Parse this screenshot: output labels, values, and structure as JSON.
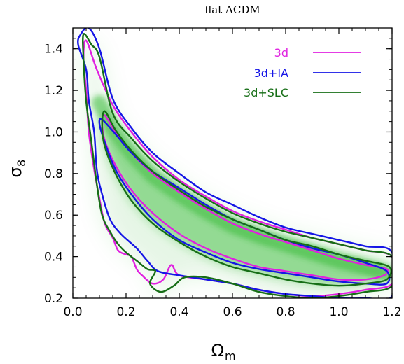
{
  "chart_data": {
    "type": "contour",
    "title": "flat ΛCDM",
    "xlabel": {
      "symbol": "Ω",
      "subscript": "m"
    },
    "ylabel": {
      "symbol": "σ",
      "subscript": "8"
    },
    "xlim": [
      0.0,
      1.2
    ],
    "ylim": [
      0.2,
      1.5
    ],
    "xticks": [
      {
        "value": 0.0,
        "label": "0.0"
      },
      {
        "value": 0.2,
        "label": "0.2"
      },
      {
        "value": 0.4,
        "label": "0.4"
      },
      {
        "value": 0.6,
        "label": "0.6"
      },
      {
        "value": 0.8,
        "label": "0.8"
      },
      {
        "value": 1.0,
        "label": "1.0"
      },
      {
        "value": 1.2,
        "label": "1.2"
      }
    ],
    "yticks": [
      {
        "value": 0.2,
        "label": "0.2"
      },
      {
        "value": 0.4,
        "label": "0.4"
      },
      {
        "value": 0.6,
        "label": "0.6"
      },
      {
        "value": 0.8,
        "label": "0.8"
      },
      {
        "value": 1.0,
        "label": "1.0"
      },
      {
        "value": 1.2,
        "label": "1.2"
      },
      {
        "value": 1.4,
        "label": "1.4"
      }
    ],
    "legend_position": "top-right",
    "series": [
      {
        "name": "3d",
        "color": "#e020e0",
        "contours": [
          [
            [
              0.12,
              1.08
            ],
            [
              0.16,
              1.0
            ],
            [
              0.22,
              0.9
            ],
            [
              0.3,
              0.8
            ],
            [
              0.4,
              0.71
            ],
            [
              0.5,
              0.63
            ],
            [
              0.6,
              0.56
            ],
            [
              0.7,
              0.51
            ],
            [
              0.8,
              0.47
            ],
            [
              0.9,
              0.43
            ],
            [
              1.0,
              0.39
            ],
            [
              1.1,
              0.36
            ],
            [
              1.18,
              0.34
            ],
            [
              1.17,
              0.31
            ],
            [
              1.1,
              0.29
            ],
            [
              1.0,
              0.29
            ],
            [
              0.9,
              0.31
            ],
            [
              0.8,
              0.33
            ],
            [
              0.7,
              0.35
            ],
            [
              0.6,
              0.39
            ],
            [
              0.5,
              0.44
            ],
            [
              0.4,
              0.51
            ],
            [
              0.3,
              0.61
            ],
            [
              0.22,
              0.72
            ],
            [
              0.16,
              0.84
            ],
            [
              0.12,
              0.96
            ],
            [
              0.11,
              1.05
            ]
          ],
          [
            [
              0.05,
              1.44
            ],
            [
              0.09,
              1.3
            ],
            [
              0.15,
              1.13
            ],
            [
              0.22,
              1.0
            ],
            [
              0.3,
              0.88
            ],
            [
              0.4,
              0.77
            ],
            [
              0.5,
              0.69
            ],
            [
              0.6,
              0.62
            ],
            [
              0.7,
              0.57
            ],
            [
              0.8,
              0.53
            ],
            [
              0.9,
              0.49
            ],
            [
              1.0,
              0.46
            ],
            [
              1.1,
              0.43
            ],
            [
              1.2,
              0.4
            ],
            [
              1.2,
              0.27
            ],
            [
              1.1,
              0.24
            ],
            [
              1.0,
              0.22
            ],
            [
              0.9,
              0.21
            ],
            [
              0.8,
              0.22
            ],
            [
              0.7,
              0.24
            ],
            [
              0.6,
              0.27
            ],
            [
              0.5,
              0.29
            ],
            [
              0.4,
              0.31
            ],
            [
              0.37,
              0.36
            ],
            [
              0.34,
              0.29
            ],
            [
              0.3,
              0.27
            ],
            [
              0.26,
              0.31
            ],
            [
              0.24,
              0.34
            ],
            [
              0.22,
              0.4
            ],
            [
              0.2,
              0.41
            ],
            [
              0.17,
              0.43
            ],
            [
              0.15,
              0.49
            ],
            [
              0.12,
              0.56
            ],
            [
              0.1,
              0.68
            ],
            [
              0.08,
              0.82
            ],
            [
              0.06,
              1.0
            ],
            [
              0.05,
              1.2
            ],
            [
              0.04,
              1.35
            ]
          ]
        ]
      },
      {
        "name": "3d+IA",
        "color": "#1515e6",
        "contours": [
          [
            [
              0.11,
              1.06
            ],
            [
              0.16,
              0.99
            ],
            [
              0.22,
              0.9
            ],
            [
              0.3,
              0.81
            ],
            [
              0.4,
              0.73
            ],
            [
              0.5,
              0.65
            ],
            [
              0.6,
              0.58
            ],
            [
              0.7,
              0.53
            ],
            [
              0.8,
              0.48
            ],
            [
              0.9,
              0.44
            ],
            [
              1.0,
              0.41
            ],
            [
              1.1,
              0.37
            ],
            [
              1.18,
              0.33
            ],
            [
              1.18,
              0.27
            ],
            [
              1.1,
              0.27
            ],
            [
              1.0,
              0.28
            ],
            [
              0.9,
              0.3
            ],
            [
              0.8,
              0.32
            ],
            [
              0.7,
              0.34
            ],
            [
              0.6,
              0.37
            ],
            [
              0.5,
              0.42
            ],
            [
              0.4,
              0.48
            ],
            [
              0.3,
              0.58
            ],
            [
              0.22,
              0.7
            ],
            [
              0.16,
              0.82
            ],
            [
              0.12,
              0.95
            ],
            [
              0.1,
              1.04
            ]
          ],
          [
            [
              0.03,
              1.47
            ],
            [
              0.06,
              1.5
            ],
            [
              0.1,
              1.4
            ],
            [
              0.15,
              1.16
            ],
            [
              0.22,
              1.02
            ],
            [
              0.3,
              0.9
            ],
            [
              0.4,
              0.8
            ],
            [
              0.5,
              0.71
            ],
            [
              0.6,
              0.65
            ],
            [
              0.7,
              0.59
            ],
            [
              0.8,
              0.54
            ],
            [
              0.9,
              0.51
            ],
            [
              1.0,
              0.48
            ],
            [
              1.1,
              0.45
            ],
            [
              1.2,
              0.42
            ],
            [
              1.2,
              0.21
            ],
            [
              1.1,
              0.2
            ],
            [
              1.0,
              0.2
            ],
            [
              0.9,
              0.21
            ],
            [
              0.8,
              0.22
            ],
            [
              0.7,
              0.24
            ],
            [
              0.6,
              0.27
            ],
            [
              0.5,
              0.29
            ],
            [
              0.4,
              0.31
            ],
            [
              0.32,
              0.33
            ],
            [
              0.28,
              0.38
            ],
            [
              0.24,
              0.44
            ],
            [
              0.18,
              0.51
            ],
            [
              0.14,
              0.58
            ],
            [
              0.11,
              0.7
            ],
            [
              0.09,
              0.82
            ],
            [
              0.08,
              1.0
            ],
            [
              0.06,
              1.15
            ],
            [
              0.05,
              1.3
            ],
            [
              0.02,
              1.42
            ]
          ]
        ]
      },
      {
        "name": "3d+SLC",
        "color": "#166e16",
        "contours": [
          [
            [
              0.12,
              1.1
            ],
            [
              0.16,
              1.01
            ],
            [
              0.22,
              0.91
            ],
            [
              0.3,
              0.81
            ],
            [
              0.4,
              0.72
            ],
            [
              0.5,
              0.64
            ],
            [
              0.6,
              0.58
            ],
            [
              0.7,
              0.53
            ],
            [
              0.8,
              0.48
            ],
            [
              0.9,
              0.45
            ],
            [
              1.0,
              0.41
            ],
            [
              1.1,
              0.38
            ],
            [
              1.19,
              0.35
            ],
            [
              1.18,
              0.29
            ],
            [
              1.1,
              0.27
            ],
            [
              1.0,
              0.26
            ],
            [
              0.9,
              0.27
            ],
            [
              0.8,
              0.29
            ],
            [
              0.7,
              0.32
            ],
            [
              0.6,
              0.35
            ],
            [
              0.5,
              0.4
            ],
            [
              0.4,
              0.47
            ],
            [
              0.3,
              0.56
            ],
            [
              0.22,
              0.67
            ],
            [
              0.16,
              0.8
            ],
            [
              0.12,
              0.93
            ],
            [
              0.11,
              1.03
            ]
          ],
          [
            [
              0.04,
              1.47
            ],
            [
              0.07,
              1.42
            ],
            [
              0.1,
              1.36
            ],
            [
              0.15,
              1.09
            ],
            [
              0.22,
              0.97
            ],
            [
              0.3,
              0.86
            ],
            [
              0.4,
              0.76
            ],
            [
              0.5,
              0.68
            ],
            [
              0.6,
              0.61
            ],
            [
              0.7,
              0.56
            ],
            [
              0.8,
              0.52
            ],
            [
              0.9,
              0.49
            ],
            [
              1.0,
              0.46
            ],
            [
              1.1,
              0.43
            ],
            [
              1.2,
              0.4
            ],
            [
              1.2,
              0.26
            ],
            [
              1.1,
              0.23
            ],
            [
              1.0,
              0.21
            ],
            [
              0.9,
              0.2
            ],
            [
              0.8,
              0.21
            ],
            [
              0.7,
              0.23
            ],
            [
              0.6,
              0.27
            ],
            [
              0.5,
              0.3
            ],
            [
              0.42,
              0.3
            ],
            [
              0.38,
              0.26
            ],
            [
              0.33,
              0.23
            ],
            [
              0.29,
              0.27
            ],
            [
              0.31,
              0.33
            ],
            [
              0.28,
              0.34
            ],
            [
              0.24,
              0.38
            ],
            [
              0.2,
              0.42
            ],
            [
              0.17,
              0.46
            ],
            [
              0.14,
              0.52
            ],
            [
              0.11,
              0.6
            ],
            [
              0.09,
              0.75
            ],
            [
              0.07,
              0.95
            ],
            [
              0.05,
              1.15
            ],
            [
              0.04,
              1.35
            ]
          ]
        ]
      }
    ],
    "density_ridge": {
      "color": "#2fb82f",
      "points": [
        [
          0.1,
          1.14
        ],
        [
          0.15,
          1.02
        ],
        [
          0.22,
          0.9
        ],
        [
          0.3,
          0.79
        ],
        [
          0.4,
          0.7
        ],
        [
          0.5,
          0.62
        ],
        [
          0.6,
          0.55
        ],
        [
          0.7,
          0.5
        ],
        [
          0.8,
          0.46
        ],
        [
          0.9,
          0.42
        ],
        [
          1.0,
          0.38
        ],
        [
          1.1,
          0.35
        ],
        [
          1.18,
          0.32
        ]
      ]
    }
  }
}
